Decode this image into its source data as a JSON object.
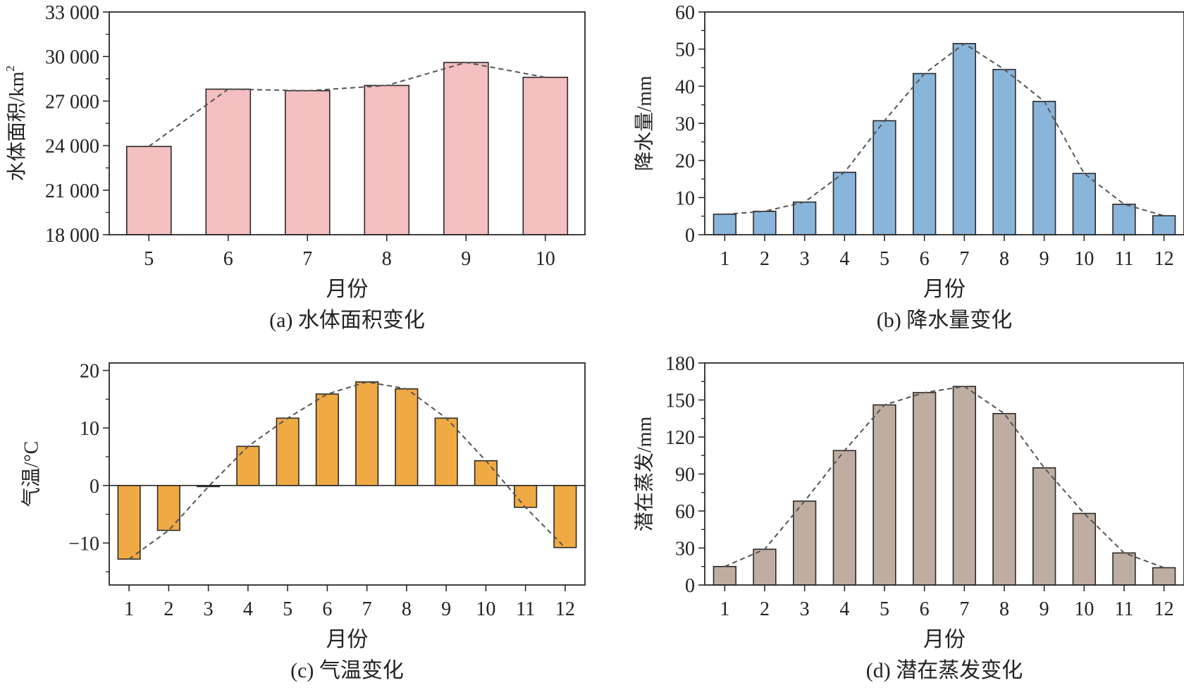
{
  "chart_data": [
    {
      "id": "a",
      "type": "bar",
      "caption": "(a) 水体面积变化",
      "xlabel": "月份",
      "ylabel": "水体面积/km",
      "ylabel_sup": "2",
      "categories": [
        "5",
        "6",
        "7",
        "8",
        "9",
        "10"
      ],
      "values": [
        23950,
        27800,
        27700,
        28050,
        29600,
        28600
      ],
      "ylim": [
        18000,
        33000
      ],
      "yticks": [
        18000,
        21000,
        24000,
        27000,
        30000,
        33000
      ],
      "ytick_labels": [
        "18 000",
        "21 000",
        "24 000",
        "27 000",
        "30 000",
        "33 000"
      ],
      "bar_color": "#f4bfc0",
      "trend_line": "dashed",
      "grid": false
    },
    {
      "id": "b",
      "type": "bar",
      "caption": "(b) 降水量变化",
      "xlabel": "月份",
      "ylabel": "降水量/mm",
      "categories": [
        "1",
        "2",
        "3",
        "4",
        "5",
        "6",
        "7",
        "8",
        "9",
        "10",
        "11",
        "12"
      ],
      "values": [
        5.5,
        6.3,
        8.8,
        16.8,
        30.7,
        43.4,
        51.5,
        44.5,
        35.9,
        16.5,
        8.2,
        5.1
      ],
      "ylim": [
        0,
        60
      ],
      "yticks": [
        0,
        10,
        20,
        30,
        40,
        50,
        60
      ],
      "ytick_labels": [
        "0",
        "10",
        "20",
        "30",
        "40",
        "50",
        "60"
      ],
      "bar_color": "#8ab5da",
      "trend_line": "dashed",
      "grid": false
    },
    {
      "id": "c",
      "type": "bar",
      "caption": "(c) 气温变化",
      "xlabel": "月份",
      "ylabel": "气温/°C",
      "categories": [
        "1",
        "2",
        "3",
        "4",
        "5",
        "6",
        "7",
        "8",
        "9",
        "10",
        "11",
        "12"
      ],
      "values": [
        -12.8,
        -7.8,
        -0.2,
        6.8,
        11.7,
        15.9,
        18.0,
        16.8,
        11.7,
        4.3,
        -3.8,
        -10.8
      ],
      "ylim": [
        -17.3,
        21.3
      ],
      "yticks": [
        -10,
        0,
        10,
        20
      ],
      "ytick_labels": [
        "−10",
        "0",
        "10",
        "20"
      ],
      "bar_color": "#f0aa43",
      "zero_line": true,
      "trend_line": "dashed",
      "grid": false
    },
    {
      "id": "d",
      "type": "bar",
      "caption": "(d) 潜在蒸发变化",
      "xlabel": "月份",
      "ylabel": "潜在蒸发/mm",
      "categories": [
        "1",
        "2",
        "3",
        "4",
        "5",
        "6",
        "7",
        "8",
        "9",
        "10",
        "11",
        "12"
      ],
      "values": [
        15,
        29,
        68,
        109,
        146,
        156,
        161,
        139,
        95,
        58,
        26,
        14
      ],
      "ylim": [
        0,
        180
      ],
      "yticks": [
        0,
        30,
        60,
        90,
        120,
        150,
        180
      ],
      "ytick_labels": [
        "0",
        "30",
        "60",
        "90",
        "120",
        "150",
        "180"
      ],
      "bar_color": "#c0ada2",
      "trend_line": "dashed",
      "grid": false
    }
  ]
}
